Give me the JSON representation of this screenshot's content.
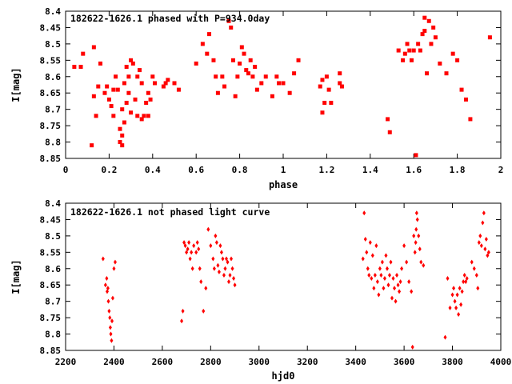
{
  "chart_data": [
    {
      "type": "scatter",
      "title": "182622-1626.1 phased with P=934.0day",
      "xlabel": "phase",
      "ylabel": "I[mag]",
      "xlim": [
        0,
        2
      ],
      "ylim": [
        8.4,
        8.85
      ],
      "y_inverted": true,
      "grid": false,
      "marker_color": "#ff0000",
      "marker_shape": "filled-square",
      "x_ticks": [
        "0",
        "0.2",
        "0.4",
        "0.6",
        "0.8",
        "1",
        "1.2",
        "1.4",
        "1.6",
        "1.8",
        "2"
      ],
      "y_ticks": [
        "8.4",
        "8.45",
        "8.5",
        "8.55",
        "8.6",
        "8.65",
        "8.7",
        "8.75",
        "8.8",
        "8.85"
      ],
      "series": [
        {
          "x": [
            0.04,
            0.07,
            0.08,
            0.12,
            0.13,
            0.13,
            0.14,
            0.15,
            0.16,
            0.18,
            0.19,
            0.2,
            0.21,
            0.22,
            0.22,
            0.23,
            0.24,
            0.25,
            0.25,
            0.26,
            0.26,
            0.26,
            0.27,
            0.27,
            0.28,
            0.28,
            0.29,
            0.29,
            0.3,
            0.3,
            0.31,
            0.32,
            0.33,
            0.33,
            0.34,
            0.35,
            0.35,
            0.36,
            0.37,
            0.38,
            0.38,
            0.39,
            0.4,
            0.41,
            0.45,
            0.46,
            0.47,
            0.5,
            0.52,
            0.6,
            0.63,
            0.65,
            0.66,
            0.68,
            0.69,
            0.7,
            0.72,
            0.73,
            0.75,
            0.76,
            0.77,
            0.78,
            0.79,
            0.8,
            0.81,
            0.82,
            0.83,
            0.84,
            0.85,
            0.86,
            0.87,
            0.88,
            0.9,
            0.92,
            0.95,
            0.97,
            0.98,
            1.0,
            1.03,
            1.05,
            1.07,
            1.17,
            1.18,
            1.18,
            1.19,
            1.2,
            1.21,
            1.22,
            1.26,
            1.26,
            1.27,
            1.48,
            1.49,
            1.53,
            1.55,
            1.56,
            1.57,
            1.58,
            1.59,
            1.6,
            1.61,
            1.62,
            1.63,
            1.64,
            1.65,
            1.65,
            1.66,
            1.67,
            1.68,
            1.69,
            1.7,
            1.72,
            1.75,
            1.78,
            1.8,
            1.82,
            1.84,
            1.86,
            1.95
          ],
          "y": [
            8.57,
            8.57,
            8.53,
            8.81,
            8.51,
            8.66,
            8.72,
            8.63,
            8.56,
            8.65,
            8.63,
            8.67,
            8.69,
            8.64,
            8.72,
            8.6,
            8.64,
            8.76,
            8.8,
            8.78,
            8.81,
            8.7,
            8.74,
            8.62,
            8.68,
            8.57,
            8.65,
            8.6,
            8.71,
            8.55,
            8.56,
            8.67,
            8.72,
            8.6,
            8.58,
            8.73,
            8.62,
            8.72,
            8.68,
            8.65,
            8.72,
            8.67,
            8.6,
            8.62,
            8.63,
            8.62,
            8.61,
            8.62,
            8.64,
            8.56,
            8.5,
            8.53,
            8.47,
            8.55,
            8.6,
            8.65,
            8.6,
            8.63,
            8.43,
            8.45,
            8.55,
            8.66,
            8.6,
            8.56,
            8.51,
            8.53,
            8.58,
            8.59,
            8.55,
            8.6,
            8.57,
            8.64,
            8.62,
            8.6,
            8.66,
            8.6,
            8.62,
            8.62,
            8.65,
            8.59,
            8.55,
            8.63,
            8.61,
            8.71,
            8.68,
            8.6,
            8.64,
            8.68,
            8.59,
            8.62,
            8.63,
            8.73,
            8.77,
            8.52,
            8.55,
            8.53,
            8.5,
            8.52,
            8.55,
            8.52,
            8.84,
            8.5,
            8.52,
            8.47,
            8.46,
            8.42,
            8.59,
            8.43,
            8.5,
            8.45,
            8.48,
            8.56,
            8.59,
            8.53,
            8.55,
            8.64,
            8.67,
            8.73,
            8.48
          ]
        }
      ]
    },
    {
      "type": "scatter",
      "title": "182622-1626.1 not phased light curve",
      "xlabel": "hjd0",
      "ylabel": "I[mag]",
      "xlim": [
        2200,
        4000
      ],
      "ylim": [
        8.4,
        8.85
      ],
      "y_inverted": true,
      "grid": false,
      "marker_color": "#ff0000",
      "marker_shape": "diamond",
      "x_ticks": [
        "2200",
        "2400",
        "2600",
        "2800",
        "3000",
        "3200",
        "3400",
        "3600",
        "3800",
        "4000"
      ],
      "y_ticks": [
        "8.4",
        "8.45",
        "8.5",
        "8.55",
        "8.6",
        "8.65",
        "8.7",
        "8.75",
        "8.8",
        "8.85"
      ],
      "series": [
        {
          "x": [
            2355,
            2365,
            2370,
            2372,
            2375,
            2377,
            2380,
            2383,
            2385,
            2387,
            2390,
            2392,
            2395,
            2400,
            2405,
            2680,
            2685,
            2690,
            2695,
            2700,
            2705,
            2710,
            2715,
            2720,
            2725,
            2730,
            2740,
            2745,
            2750,
            2755,
            2760,
            2770,
            2780,
            2790,
            2800,
            2810,
            2815,
            2820,
            2825,
            2830,
            2835,
            2840,
            2845,
            2850,
            2855,
            2860,
            2865,
            2870,
            2875,
            2880,
            2885,
            2890,
            2895,
            2900,
            3430,
            3435,
            3440,
            3445,
            3450,
            3455,
            3460,
            3465,
            3470,
            3475,
            3480,
            3485,
            3490,
            3495,
            3500,
            3505,
            3510,
            3515,
            3520,
            3525,
            3530,
            3535,
            3540,
            3545,
            3550,
            3555,
            3560,
            3565,
            3570,
            3575,
            3580,
            3585,
            3590,
            3600,
            3610,
            3620,
            3630,
            3635,
            3640,
            3645,
            3648,
            3650,
            3652,
            3655,
            3660,
            3665,
            3670,
            3680,
            3770,
            3780,
            3790,
            3800,
            3805,
            3810,
            3815,
            3820,
            3825,
            3830,
            3835,
            3840,
            3845,
            3850,
            3855,
            3860,
            3880,
            3890,
            3900,
            3905,
            3910,
            3915,
            3920,
            3925,
            3930,
            3935,
            3940,
            3945,
            3950
          ],
          "y": [
            8.57,
            8.65,
            8.63,
            8.67,
            8.66,
            8.7,
            8.73,
            8.75,
            8.78,
            8.8,
            8.82,
            8.76,
            8.69,
            8.6,
            8.58,
            8.76,
            8.73,
            8.52,
            8.53,
            8.55,
            8.54,
            8.52,
            8.57,
            8.55,
            8.6,
            8.53,
            8.55,
            8.52,
            8.54,
            8.6,
            8.64,
            8.73,
            8.66,
            8.48,
            8.53,
            8.57,
            8.6,
            8.5,
            8.52,
            8.59,
            8.61,
            8.53,
            8.55,
            8.57,
            8.62,
            8.6,
            8.57,
            8.58,
            8.64,
            8.62,
            8.57,
            8.6,
            8.63,
            8.65,
            8.57,
            8.43,
            8.51,
            8.55,
            8.6,
            8.62,
            8.52,
            8.63,
            8.56,
            8.66,
            8.62,
            8.53,
            8.64,
            8.68,
            8.6,
            8.62,
            8.58,
            8.66,
            8.63,
            8.56,
            8.6,
            8.65,
            8.62,
            8.58,
            8.69,
            8.63,
            8.66,
            8.7,
            8.62,
            8.65,
            8.67,
            8.64,
            8.6,
            8.53,
            8.58,
            8.64,
            8.67,
            8.84,
            8.5,
            8.55,
            8.52,
            8.48,
            8.43,
            8.45,
            8.5,
            8.54,
            8.58,
            8.59,
            8.81,
            8.63,
            8.72,
            8.68,
            8.66,
            8.7,
            8.72,
            8.68,
            8.74,
            8.66,
            8.71,
            8.67,
            8.64,
            8.62,
            8.64,
            8.63,
            8.58,
            8.6,
            8.62,
            8.66,
            8.52,
            8.5,
            8.53,
            8.46,
            8.43,
            8.54,
            8.51,
            8.56,
            8.55
          ]
        }
      ]
    }
  ]
}
